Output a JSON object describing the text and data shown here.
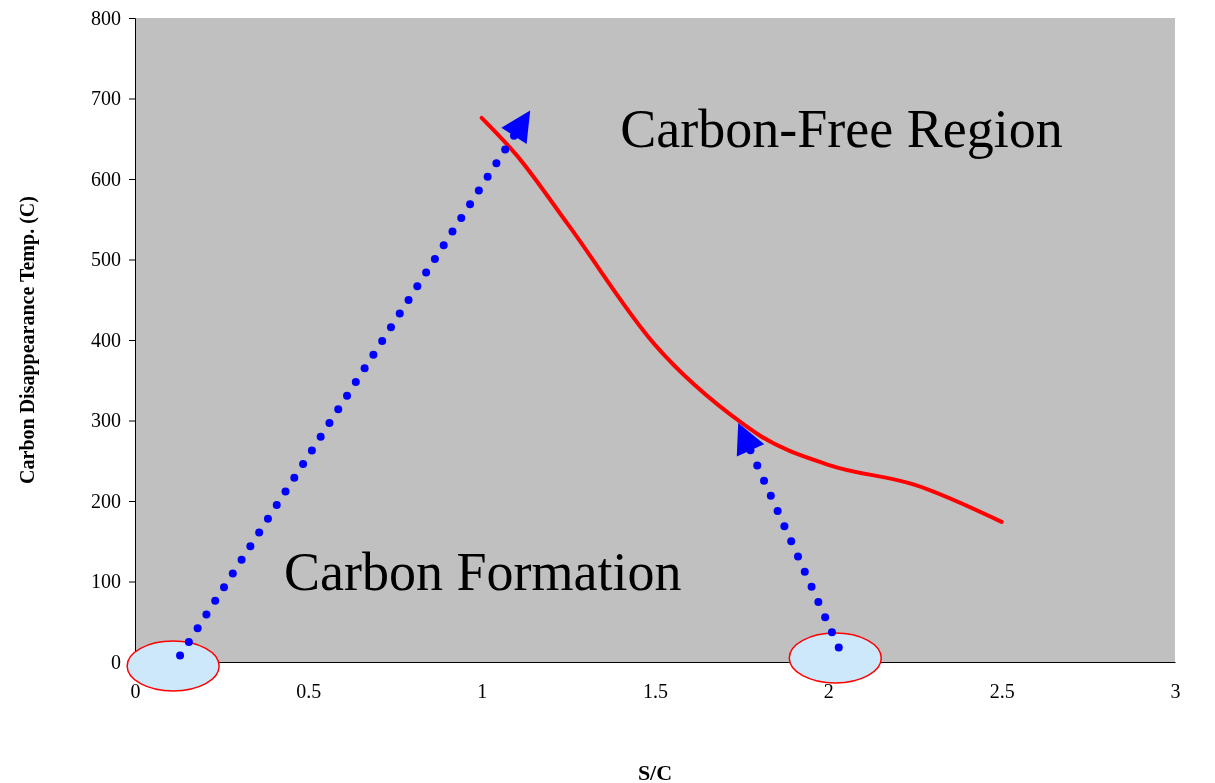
{
  "chart_data": {
    "type": "line",
    "xlabel": "S/C",
    "ylabel": "Carbon Disappearance Temp. (C)",
    "x": [
      1,
      1.1,
      1.25,
      1.5,
      1.75,
      1.8,
      2,
      2.25,
      2.5
    ],
    "series": [
      {
        "color": "#ff0000",
        "values": [
          676,
          630,
          543,
          394,
          297,
          282,
          245,
          220,
          174
        ]
      }
    ],
    "xlim": [
      0,
      3
    ],
    "xticks": [
      0,
      0.5,
      1,
      1.5,
      2,
      2.5,
      3
    ],
    "ylim": [
      0,
      800
    ],
    "yticks": [
      0,
      100,
      200,
      300,
      400,
      500,
      600,
      700,
      800
    ],
    "grid": false,
    "marker": "none",
    "line_style": "solid",
    "annotations": [
      "Carbon-Free Region",
      "Carbon Formation"
    ]
  }
}
